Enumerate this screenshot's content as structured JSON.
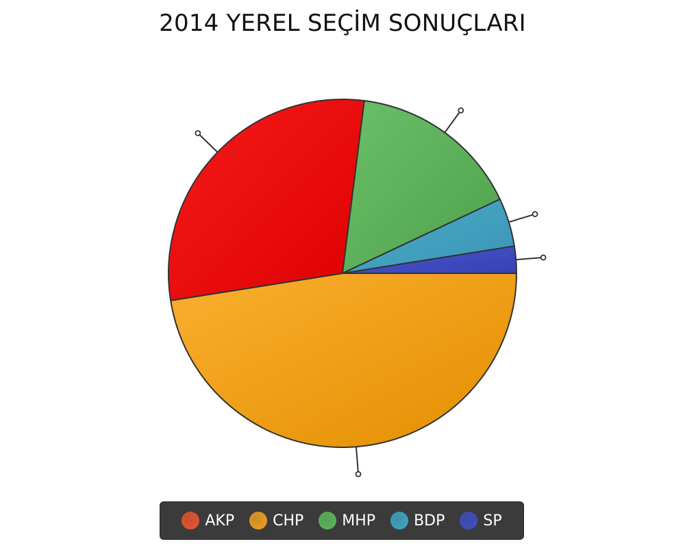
{
  "chart_data": {
    "type": "pie",
    "title": "2014 YEREL SEÇİM SONUÇLARI",
    "categories": [
      "CHP",
      "AKP",
      "MHP",
      "BDP",
      "SP"
    ],
    "values": [
      47.5,
      29.5,
      16.0,
      4.5,
      2.5
    ],
    "legend_position": "bottom",
    "legend": [
      {
        "label": "AKP",
        "color": "#e8552f"
      },
      {
        "label": "CHP",
        "color": "#f0a020"
      },
      {
        "label": "MHP",
        "color": "#5cb85c"
      },
      {
        "label": "BDP",
        "color": "#3fa7c4"
      },
      {
        "label": "SP",
        "color": "#3f4fc4"
      }
    ],
    "slice_colors": {
      "CHP": {
        "light": "#f9b030",
        "dark": "#e48e00"
      },
      "AKP": {
        "light": "#f51c1c",
        "dark": "#de0000"
      },
      "MHP": {
        "light": "#6bbf68",
        "dark": "#4fa24c"
      },
      "BDP": {
        "light": "#4cafcc",
        "dark": "#3a93b2"
      },
      "SP": {
        "light": "#4a58cf",
        "dark": "#3840b4"
      }
    }
  }
}
